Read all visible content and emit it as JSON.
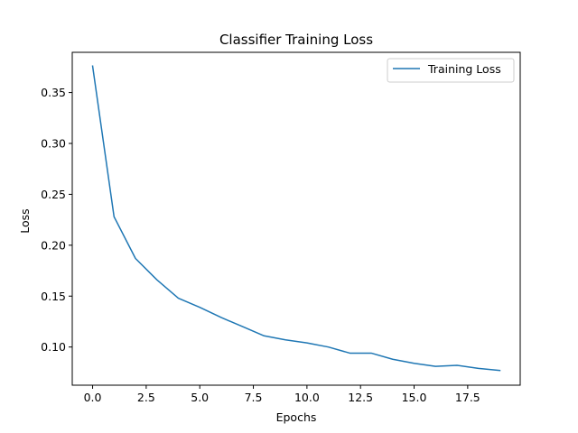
{
  "chart_data": {
    "type": "line",
    "title": "Classifier Training Loss",
    "xlabel": "Epochs",
    "ylabel": "Loss",
    "xlim": [
      -0.95,
      19.95
    ],
    "ylim": [
      0.0625,
      0.3895
    ],
    "xticks": [
      0.0,
      2.5,
      5.0,
      7.5,
      10.0,
      12.5,
      15.0,
      17.5
    ],
    "xtick_labels": [
      "0.0",
      "2.5",
      "5.0",
      "7.5",
      "10.0",
      "12.5",
      "15.0",
      "17.5"
    ],
    "yticks": [
      0.1,
      0.15,
      0.2,
      0.25,
      0.3,
      0.35
    ],
    "ytick_labels": [
      "0.10",
      "0.15",
      "0.20",
      "0.25",
      "0.30",
      "0.35"
    ],
    "grid": false,
    "legend_position": "upper right",
    "series": [
      {
        "name": "Training Loss",
        "color": "#1f77b4",
        "x": [
          0,
          1,
          2,
          3,
          4,
          5,
          6,
          7,
          8,
          9,
          10,
          11,
          12,
          13,
          14,
          15,
          16,
          17,
          18,
          19
        ],
        "y": [
          0.376,
          0.228,
          0.187,
          0.166,
          0.148,
          0.139,
          0.129,
          0.12,
          0.111,
          0.107,
          0.104,
          0.1,
          0.094,
          0.094,
          0.088,
          0.084,
          0.081,
          0.082,
          0.079,
          0.077
        ]
      }
    ]
  }
}
